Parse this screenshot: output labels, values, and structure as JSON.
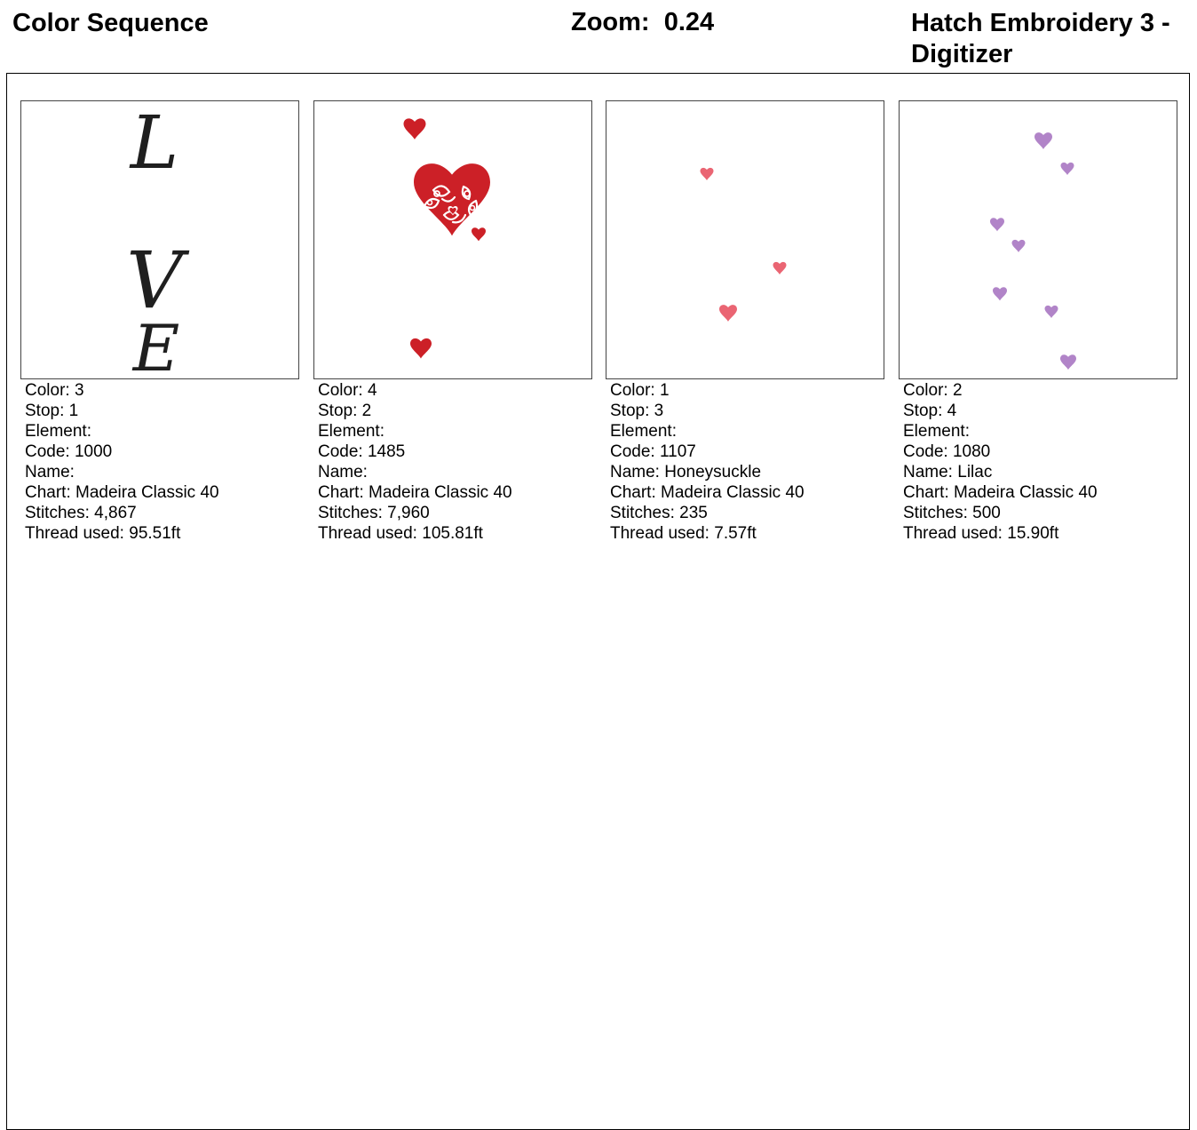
{
  "header": {
    "title": "Color Sequence",
    "zoom_label": "Zoom:",
    "zoom_value": "0.24",
    "app_name": "Hatch Embroidery 3 - Digitizer"
  },
  "labels": {
    "color": "Color:",
    "stop": "Stop:",
    "element": "Element:",
    "code": "Code:",
    "name": "Name:",
    "chart": "Chart:",
    "stitches": "Stitches:",
    "thread": "Thread used:"
  },
  "colors": {
    "black": "#1f1f1f",
    "red": "#cc2027",
    "honeysuckle": "#ea6573",
    "lilac": "#b184c8"
  },
  "cards": [
    {
      "color": "3",
      "stop": "1",
      "element": "",
      "code": "1000",
      "name": "",
      "chart": "Madeira Classic 40",
      "stitches": "4,867",
      "thread": "95.51ft",
      "preview": {
        "letters": [
          "L",
          "V",
          "E"
        ],
        "color": "#1f1f1f"
      }
    },
    {
      "color": "4",
      "stop": "2",
      "element": "",
      "code": "1485",
      "name": "",
      "chart": "Madeira Classic 40",
      "stitches": "7,960",
      "thread": "105.81ft",
      "preview": {
        "icon": "filigree-heart-icon",
        "color": "#cc2027"
      }
    },
    {
      "color": "1",
      "stop": "3",
      "element": "",
      "code": "1107",
      "name": "Honeysuckle",
      "chart": "Madeira Classic 40",
      "stitches": "235",
      "thread": "7.57ft",
      "preview": {
        "icon": "small-heart-icon",
        "color": "#ea6573"
      }
    },
    {
      "color": "2",
      "stop": "4",
      "element": "",
      "code": "1080",
      "name": "Lilac",
      "chart": "Madeira Classic 40",
      "stitches": "500",
      "thread": "15.90ft",
      "preview": {
        "icon": "small-heart-icon",
        "color": "#b184c8"
      }
    }
  ]
}
